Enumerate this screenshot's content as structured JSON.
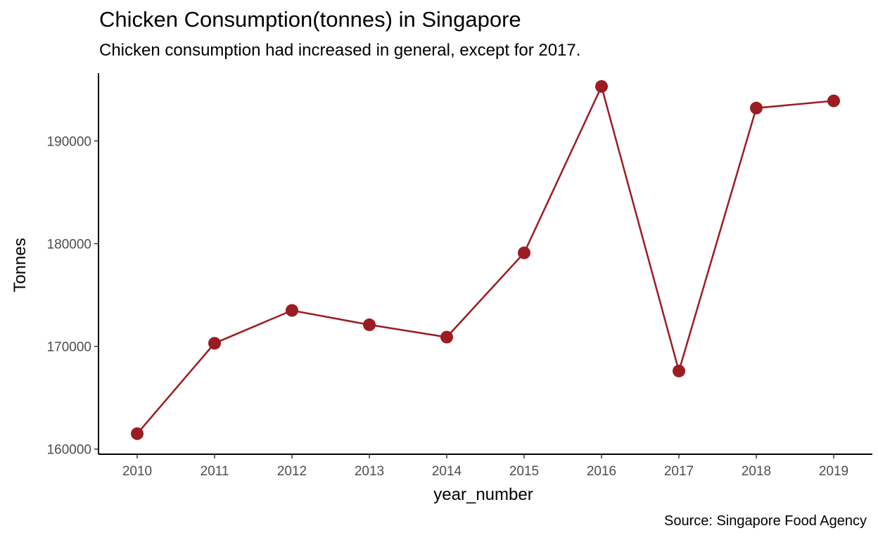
{
  "chart_data": {
    "type": "line",
    "title": "Chicken Consumption(tonnes) in Singapore",
    "subtitle": "Chicken consumption had increased in general, except for 2017.",
    "caption": "Source: Singapore Food Agency",
    "xlabel": "year_number",
    "ylabel": "Tonnes",
    "x": [
      2010,
      2011,
      2012,
      2013,
      2014,
      2015,
      2016,
      2017,
      2018,
      2019
    ],
    "series": [
      {
        "values": [
          161500,
          170300,
          173500,
          172100,
          170900,
          179100,
          195300,
          167600,
          193200,
          193900
        ]
      }
    ],
    "yticks": [
      160000,
      170000,
      180000,
      190000
    ],
    "ylim": [
      159500,
      196600
    ],
    "xlim": [
      2009.5,
      2019.5
    ],
    "grid": false,
    "line_color": "#9b1c23",
    "point_color": "#9b1c23"
  }
}
